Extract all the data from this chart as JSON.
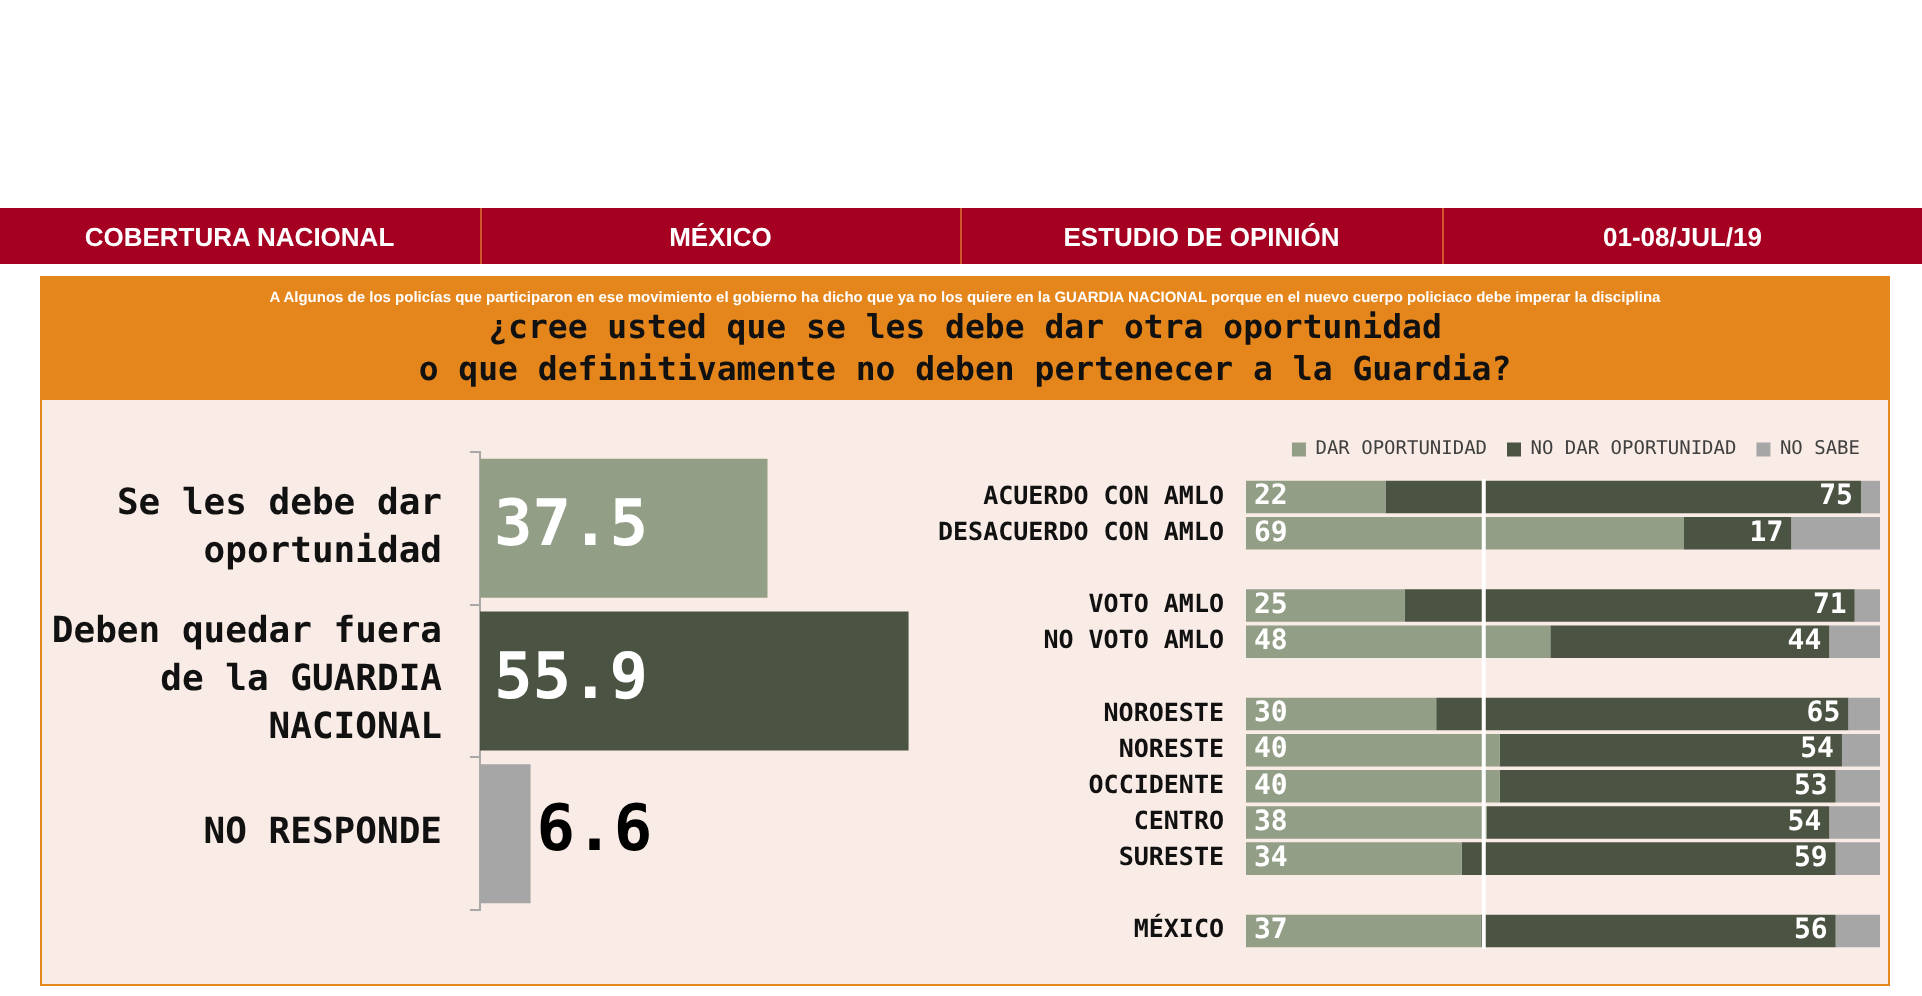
{
  "chart_data": [
    {
      "type": "bar",
      "orientation": "horizontal",
      "title": "¿cree usted que se les debe dar otra oportunidad\no que definitivamente no deben pertenecer a la Guardia?",
      "subtitle": "A Algunos de los policías que participaron en ese movimiento el gobierno ha dicho que ya no los quiere en la GUARDIA NACIONAL porque en el nuevo cuerpo policiaco debe imperar la disciplina",
      "annotations": [
        "COBERTURA NACIONAL",
        "MÉXICO",
        "ESTUDIO DE OPINIÓN",
        "01-08/JUL/19"
      ],
      "categories": [
        "Se les debe dar oportunidad",
        "Deben quedar fuera de la GUARDIA NACIONAL",
        "NO RESPONDE"
      ],
      "values": [
        37.5,
        55.9,
        6.6
      ],
      "colors": [
        "#939e87",
        "#4b5343",
        "#a6a6a6"
      ],
      "data_labels": true,
      "tick_labels": "y"
    },
    {
      "type": "bar",
      "orientation": "horizontal",
      "stacked": true,
      "categories": [
        "ACUERDO CON AMLO",
        "DESACUERDO CON AMLO",
        null,
        "VOTO AMLO",
        "NO VOTO AMLO",
        null,
        "NOROESTE",
        "NORESTE",
        "OCCIDENTE",
        "CENTRO",
        "SURESTE",
        null,
        "MÉXICO"
      ],
      "series": [
        {
          "name": "DAR OPORTUNIDAD",
          "color": "#939e87",
          "values": [
            22,
            69,
            null,
            25,
            48,
            null,
            30,
            40,
            40,
            38,
            34,
            null,
            37
          ],
          "value_labels": [
            "22",
            "69",
            null,
            "25",
            "48",
            null,
            "30",
            "40",
            "40",
            "38",
            "34",
            null,
            "37"
          ]
        },
        {
          "name": "NO DAR OPORTUNIDAD",
          "color": "#4b5343",
          "values": [
            75,
            17,
            null,
            71,
            44,
            null,
            65,
            54,
            53,
            54,
            59,
            null,
            56
          ],
          "value_labels": [
            "75",
            "17",
            null,
            "71",
            "44",
            null,
            "65",
            "54",
            "53",
            "54",
            "59",
            null,
            "56"
          ]
        },
        {
          "name": "NO SABE",
          "color": "#a6a6a6",
          "values": [
            3,
            14,
            null,
            4,
            8,
            null,
            5,
            6,
            7,
            8,
            7,
            null,
            7
          ]
        }
      ],
      "legend": "top right",
      "xlim": [
        0,
        100
      ],
      "tick_labels": "y",
      "ref_lines": [
        {
          "axis": "x",
          "value": 37.5,
          "color": "#ffffff"
        }
      ]
    }
  ]
}
